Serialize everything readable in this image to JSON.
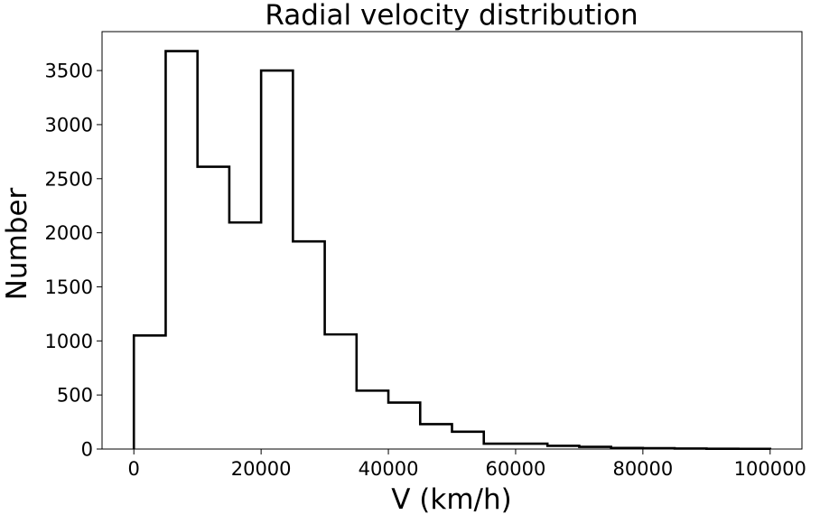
{
  "chart_data": {
    "type": "histogram",
    "title": "Radial velocity distribution",
    "xlabel": "V (km/h)",
    "ylabel": "Number",
    "xlim": [
      -5000,
      105000
    ],
    "ylim": [
      0,
      3860
    ],
    "xticks": [
      0,
      20000,
      40000,
      60000,
      80000,
      100000
    ],
    "yticks": [
      0,
      500,
      1000,
      1500,
      2000,
      2500,
      3000,
      3500
    ],
    "bin_edges": [
      0,
      5000,
      10000,
      15000,
      20000,
      25000,
      30000,
      35000,
      40000,
      45000,
      50000,
      55000,
      60000,
      65000,
      70000,
      75000,
      80000,
      85000,
      90000,
      95000,
      100000
    ],
    "counts": [
      1050,
      3680,
      2610,
      2095,
      3500,
      1920,
      1060,
      540,
      430,
      230,
      160,
      50,
      50,
      30,
      20,
      10,
      8,
      5,
      3,
      2
    ],
    "histtype": "step",
    "line_color": "#000000",
    "grid": false
  }
}
